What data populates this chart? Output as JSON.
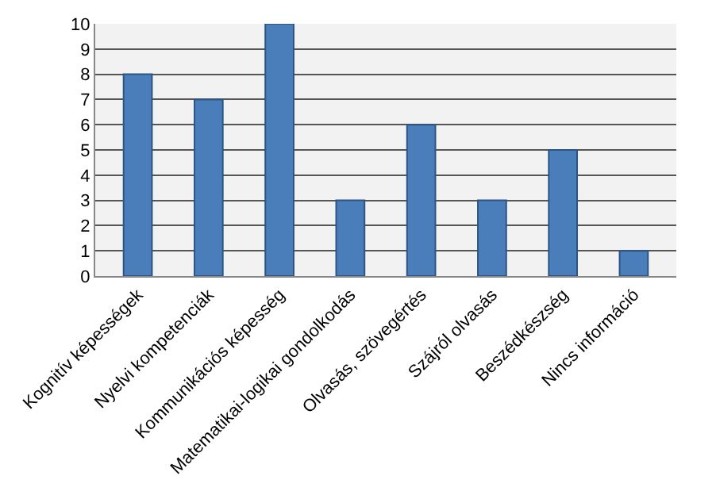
{
  "chart_data": {
    "type": "bar",
    "categories": [
      "Kognitív képességek",
      "Nyelvi kompetenciák",
      "Kommunikációs képesség",
      "Matematikai-logikai gondolkodás",
      "Olvasás, szövegértés",
      "Szájról olvasás",
      "Beszédkészség",
      "Nincs információ"
    ],
    "values": [
      8,
      7,
      10,
      3,
      6,
      3,
      5,
      1
    ],
    "color": "#4a7ebb",
    "ylim": [
      0,
      10
    ],
    "yticks": [
      0,
      1,
      2,
      3,
      4,
      5,
      6,
      7,
      8,
      9,
      10
    ],
    "grid": "y"
  }
}
